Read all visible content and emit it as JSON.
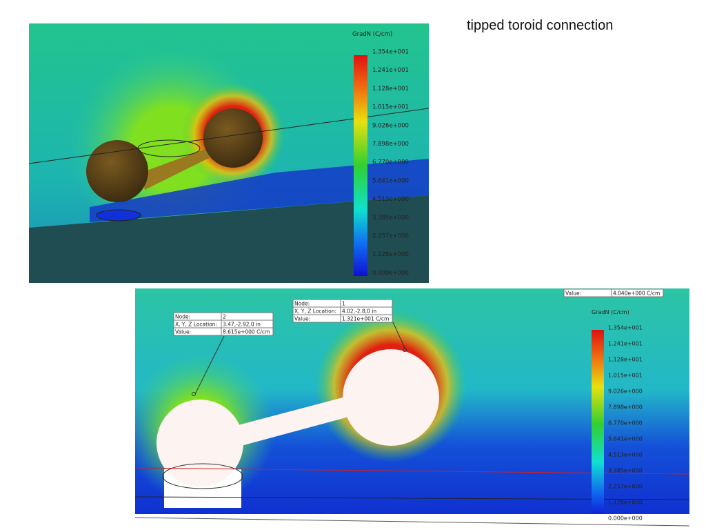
{
  "title": "tipped toroid connection",
  "top_view": {
    "legend_title": "GradN (C/cm)",
    "legend_labels": [
      "1.354e+001",
      "1.241e+001",
      "1.128e+001",
      "1.015e+001",
      "9.026e+000",
      "7.898e+000",
      "6.770e+000",
      "5.641e+000",
      "4.513e+000",
      "3.385e+000",
      "2.257e+000",
      "1.128e+000",
      "0.000e+000"
    ]
  },
  "bottom_view": {
    "legend_title": "GradN (C/cm)",
    "legend_labels": [
      "1.354e+001",
      "1.241e+001",
      "1.128e+001",
      "1.015e+001",
      "9.026e+000",
      "7.898e+000",
      "6.770e+000",
      "5.641e+000",
      "4.513e+000",
      "3.385e+000",
      "2.257e+000",
      "1.128e+000",
      "0.000e+000"
    ],
    "probes": [
      {
        "rows": [
          [
            "Node:",
            "2"
          ],
          [
            "X, Y, Z Location:",
            "3.47,-2.92,0 in"
          ],
          [
            "Value:",
            "8.615e+000 C/cm"
          ]
        ]
      },
      {
        "rows": [
          [
            "Node:",
            "1"
          ],
          [
            "X, Y, Z Location:",
            "4.02,-2.8,0 in"
          ],
          [
            "Value:",
            "1.321e+001 C/cm"
          ]
        ]
      },
      {
        "rows": [
          [
            "Value:",
            "4.040e+000 C/cm"
          ]
        ]
      }
    ]
  }
}
